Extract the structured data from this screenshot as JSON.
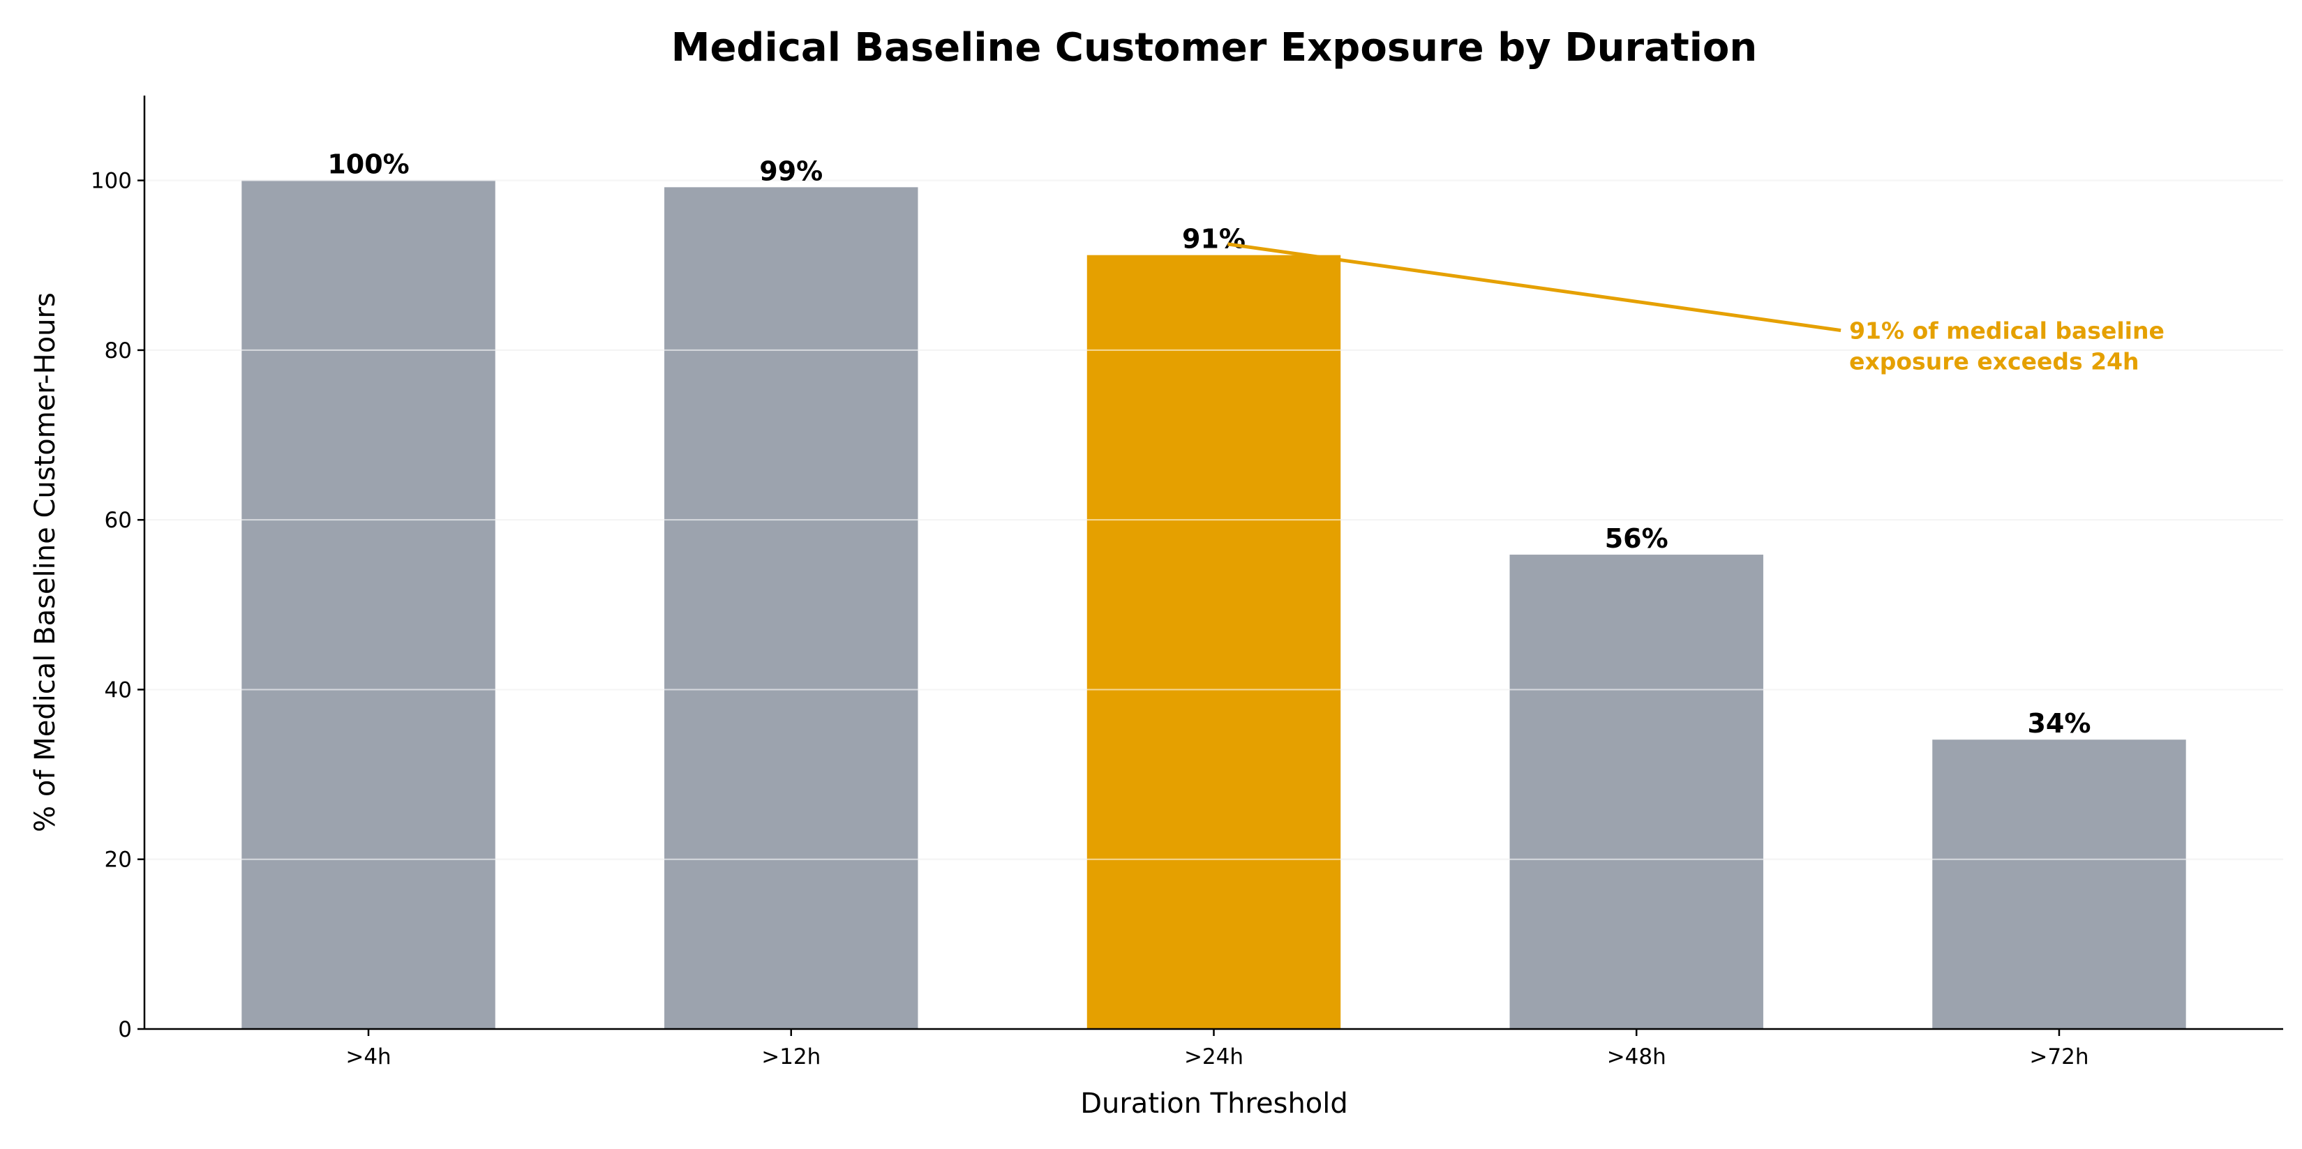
{
  "chart_data": {
    "type": "bar",
    "title": "Medical Baseline Customer Exposure by Duration",
    "xlabel": "Duration Threshold",
    "ylabel": "% of Medical Baseline Customer-Hours",
    "categories": [
      ">4h",
      ">12h",
      ">24h",
      ">48h",
      ">72h"
    ],
    "values": [
      100,
      99.2,
      91.2,
      55.9,
      34.1
    ],
    "data_labels": [
      "100%",
      "99%",
      "91%",
      "56%",
      "34%"
    ],
    "highlight_index": 2,
    "ylim": [
      0,
      110
    ],
    "yticks": [
      0,
      20,
      40,
      60,
      80,
      100
    ],
    "grid": "horizontal",
    "colors": {
      "bar": "#9ca3ae",
      "highlight": "#e5a000",
      "annotation": "#e5a000"
    },
    "annotation": {
      "lines": [
        "91% of medical baseline",
        "exposure exceeds 24h"
      ],
      "text_at": {
        "category_index": 3.5,
        "value": 82
      },
      "points_to": {
        "category_index": 2,
        "value": 92.5
      }
    }
  }
}
